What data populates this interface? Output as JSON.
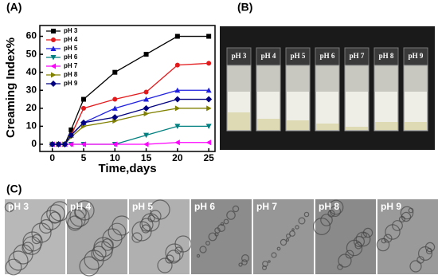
{
  "chart_data": {
    "type": "line",
    "x_label": "Time,days",
    "y_label": "Creaming Index%",
    "x": [
      0,
      1,
      2,
      3,
      5,
      10,
      15,
      20,
      25
    ],
    "series": [
      {
        "name": "pH 3",
        "color": "#000000",
        "marker": "square",
        "values": [
          0,
          0,
          0,
          8,
          25,
          40,
          50,
          60,
          60
        ]
      },
      {
        "name": "pH 4",
        "color": "#e31a1c",
        "marker": "circle",
        "values": [
          0,
          0,
          0,
          5,
          20,
          25,
          29,
          44,
          45
        ]
      },
      {
        "name": "pH 5",
        "color": "#1f1fe0",
        "marker": "triangle-up",
        "values": [
          0,
          0,
          0,
          5,
          12,
          20,
          25,
          30,
          30
        ]
      },
      {
        "name": "pH 6",
        "color": "#008080",
        "marker": "triangle-down",
        "values": [
          0,
          0,
          0,
          0,
          0,
          0,
          5,
          10,
          10
        ]
      },
      {
        "name": "pH 7",
        "color": "#ff00ff",
        "marker": "triangle-left",
        "values": [
          0,
          0,
          0,
          0,
          0,
          0,
          0,
          1,
          1
        ]
      },
      {
        "name": "pH 8",
        "color": "#808000",
        "marker": "triangle-right",
        "values": [
          0,
          0,
          0,
          4,
          10,
          13,
          17,
          20,
          20
        ]
      },
      {
        "name": "pH 9",
        "color": "#000080",
        "marker": "diamond",
        "values": [
          0,
          0,
          0,
          5,
          12,
          15,
          20,
          25,
          25
        ]
      }
    ],
    "xlim": [
      -2,
      26
    ],
    "ylim": [
      -4,
      66
    ],
    "xticks": [
      0,
      5,
      10,
      15,
      20,
      25
    ],
    "yticks": [
      0,
      10,
      20,
      30,
      40,
      50,
      60
    ],
    "legend": "upper left"
  },
  "panels": {
    "a_label": "(A)",
    "b_label": "(B)",
    "c_label": "(C)",
    "vials": [
      "pH 3",
      "pH 4",
      "pH 5",
      "pH 6",
      "pH 7",
      "pH 8",
      "pH 9"
    ],
    "micrographs": [
      "pH 3",
      "pH 4",
      "pH 5",
      "pH 6",
      "pH 7",
      "pH 8",
      "pH 9"
    ]
  }
}
